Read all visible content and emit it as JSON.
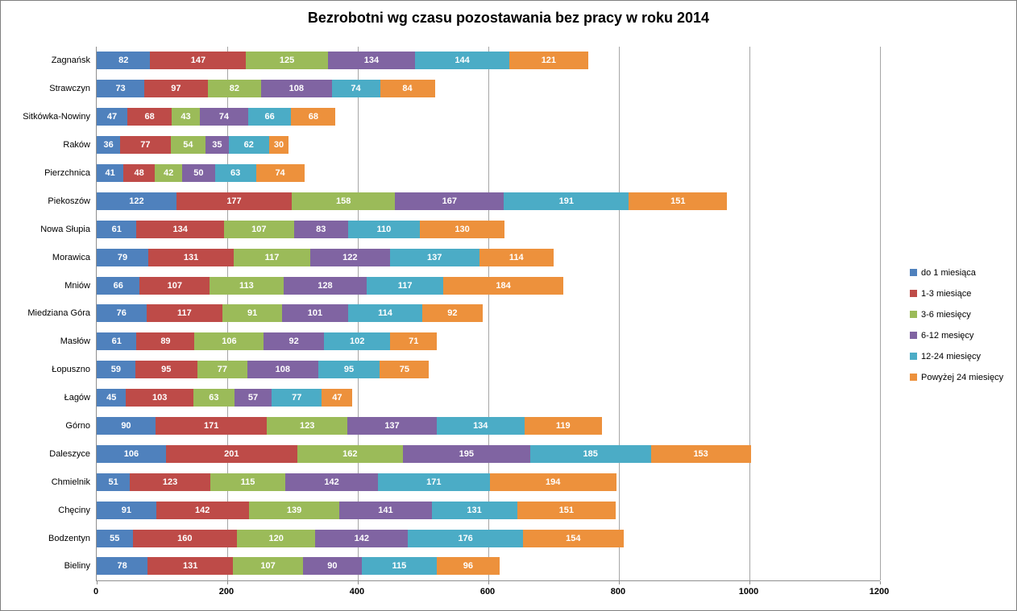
{
  "title": "Bezrobotni wg czasu pozostawania bez pracy w roku 2014",
  "chart_data": {
    "type": "bar",
    "orientation": "horizontal",
    "stacked": true,
    "title": "Bezrobotni wg czasu pozostawania bez pracy w roku 2014",
    "xlabel": "",
    "ylabel": "",
    "xlim": [
      0,
      1200
    ],
    "x_ticks": [
      0,
      200,
      400,
      600,
      800,
      1000,
      1200
    ],
    "grid": "vertical",
    "legend_position": "right",
    "data_labels": true,
    "categories": [
      "Zagnańsk",
      "Strawczyn",
      "Sitkówka-Nowiny",
      "Raków",
      "Pierzchnica",
      "Piekoszów",
      "Nowa Słupia",
      "Morawica",
      "Mniów",
      "Miedziana Góra",
      "Masłów",
      "Łopuszno",
      "Łagów",
      "Górno",
      "Daleszyce",
      "Chmielnik",
      "Chęciny",
      "Bodzentyn",
      "Bieliny"
    ],
    "series": [
      {
        "name": "do 1 miesiąca",
        "color": "#4F81BD",
        "values": [
          82,
          73,
          47,
          36,
          41,
          122,
          61,
          79,
          66,
          76,
          61,
          59,
          45,
          90,
          106,
          51,
          91,
          55,
          78
        ]
      },
      {
        "name": "1-3 miesiące",
        "color": "#BE4B48",
        "values": [
          147,
          97,
          68,
          77,
          48,
          177,
          134,
          131,
          107,
          117,
          89,
          95,
          103,
          171,
          201,
          123,
          142,
          160,
          131
        ]
      },
      {
        "name": "3-6 miesięcy",
        "color": "#9BBB59",
        "values": [
          125,
          82,
          43,
          54,
          42,
          158,
          107,
          117,
          113,
          91,
          106,
          77,
          63,
          123,
          162,
          115,
          139,
          120,
          107
        ]
      },
      {
        "name": "6-12 mesięcy",
        "color": "#8064A2",
        "values": [
          134,
          108,
          74,
          35,
          50,
          167,
          83,
          122,
          128,
          101,
          92,
          108,
          57,
          137,
          195,
          142,
          141,
          142,
          90
        ]
      },
      {
        "name": "12-24 miesięcy",
        "color": "#4BACC6",
        "values": [
          144,
          74,
          66,
          62,
          63,
          191,
          110,
          137,
          117,
          114,
          102,
          95,
          77,
          134,
          185,
          171,
          131,
          176,
          115
        ]
      },
      {
        "name": "Powyżej 24 miesięcy",
        "color": "#ED913C",
        "values": [
          121,
          84,
          68,
          30,
          74,
          151,
          130,
          114,
          184,
          92,
          71,
          75,
          47,
          119,
          153,
          194,
          151,
          154,
          96
        ]
      }
    ]
  }
}
